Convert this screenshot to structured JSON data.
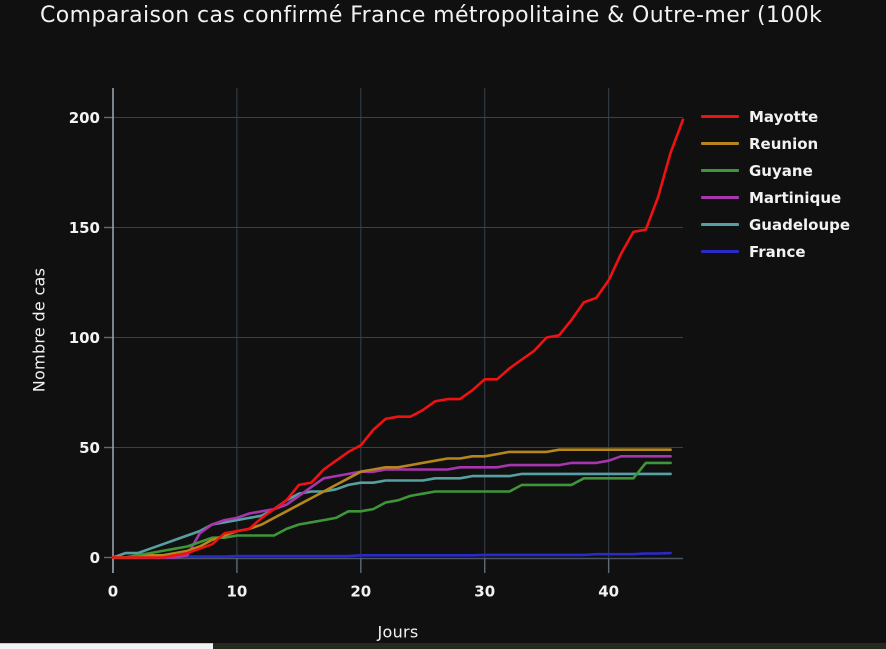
{
  "chart_data": {
    "type": "line",
    "title": "Comparaison cas confirmé France métropolitaine & Outre-mer (100k",
    "xlabel": "Jours",
    "ylabel": "Nombre de cas",
    "xlim": [
      0,
      46
    ],
    "ylim": [
      0,
      200
    ],
    "xticks": [
      0,
      10,
      20,
      30,
      40
    ],
    "yticks": [
      0,
      50,
      100,
      150,
      200
    ],
    "grid": true,
    "legend_position": "right",
    "background": "#101010",
    "text_color": "#f2f2f2",
    "grid_color": "#37424d",
    "zero_line_color": "#4a5460",
    "axis_line_color": "#95a1ad",
    "tick_mark_color": "#5f6b76",
    "series": [
      {
        "name": "Mayotte",
        "color": "#ef1212",
        "values": [
          0,
          0,
          0,
          0,
          0,
          1,
          2,
          4,
          6,
          11,
          12,
          13,
          18,
          22,
          26,
          33,
          34,
          40,
          44,
          48,
          51,
          58,
          63,
          64,
          64,
          67,
          71,
          72,
          72,
          76,
          81,
          81,
          86,
          90,
          94,
          100,
          101,
          108,
          116,
          118,
          126,
          138,
          148,
          149,
          164,
          184,
          199
        ]
      },
      {
        "name": "Reunion",
        "color": "#b5861b",
        "values": [
          0,
          0,
          0,
          1,
          1,
          2,
          3,
          5,
          8,
          10,
          12,
          13,
          15,
          18,
          21,
          24,
          27,
          30,
          33,
          36,
          39,
          40,
          41,
          41,
          42,
          43,
          44,
          45,
          45,
          46,
          46,
          47,
          48,
          48,
          48,
          48,
          49,
          49,
          49,
          49,
          49,
          49,
          49,
          49,
          49,
          49
        ]
      },
      {
        "name": "Guyane",
        "color": "#3e9639",
        "values": [
          0,
          0,
          1,
          2,
          3,
          4,
          5,
          7,
          9,
          9,
          10,
          10,
          10,
          10,
          13,
          15,
          16,
          17,
          18,
          21,
          21,
          22,
          25,
          26,
          28,
          29,
          30,
          30,
          30,
          30,
          30,
          30,
          30,
          33,
          33,
          33,
          33,
          33,
          36,
          36,
          36,
          36,
          36,
          43,
          43,
          43
        ]
      },
      {
        "name": "Martinique",
        "color": "#a735ae",
        "values": [
          0,
          0,
          0,
          0,
          0,
          0,
          1,
          11,
          15,
          17,
          18,
          20,
          21,
          22,
          24,
          28,
          32,
          36,
          37,
          38,
          39,
          39,
          40,
          40,
          40,
          40,
          40,
          40,
          41,
          41,
          41,
          41,
          42,
          42,
          42,
          42,
          42,
          43,
          43,
          43,
          44,
          46,
          46,
          46,
          46,
          46
        ]
      },
      {
        "name": "Guadeloupe",
        "color": "#57a0a2",
        "values": [
          0,
          2,
          2,
          4,
          6,
          8,
          10,
          12,
          15,
          16,
          17,
          18,
          19,
          22,
          26,
          29,
          30,
          30,
          31,
          33,
          34,
          34,
          35,
          35,
          35,
          35,
          36,
          36,
          36,
          37,
          37,
          37,
          37,
          38,
          38,
          38,
          38,
          38,
          38,
          38,
          38,
          38,
          38,
          38,
          38,
          38
        ]
      },
      {
        "name": "France",
        "color": "#2a2ac8",
        "values": [
          0,
          0,
          0,
          0,
          0,
          0.4,
          0.4,
          0.4,
          0.4,
          0.4,
          0.7,
          0.7,
          0.7,
          0.7,
          0.7,
          0.7,
          0.7,
          0.7,
          0.7,
          0.7,
          1,
          1,
          1,
          1,
          1,
          1,
          1,
          1,
          1,
          1,
          1.2,
          1.2,
          1.2,
          1.2,
          1.2,
          1.2,
          1.2,
          1.2,
          1.2,
          1.5,
          1.5,
          1.5,
          1.5,
          1.8,
          1.8,
          2
        ]
      }
    ]
  }
}
